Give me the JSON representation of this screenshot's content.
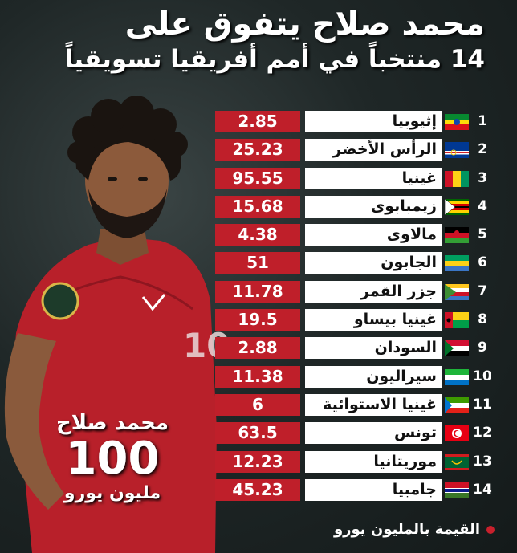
{
  "title": {
    "line1": "محمد صلاح يتفوق على",
    "line2": "14 منتخباً في أمم أفريقيا تسويقياً"
  },
  "salah": {
    "name": "محمد صلاح",
    "value": "100",
    "unit": "مليون يورو",
    "shirt_number": "10"
  },
  "rows": [
    {
      "rank": "1",
      "country": "إثيوبيا",
      "value": "2.85",
      "flag": "ethiopia-flag"
    },
    {
      "rank": "2",
      "country": "الرأس الأخضر",
      "value": "25.23",
      "flag": "cape-verde-flag"
    },
    {
      "rank": "3",
      "country": "غينيا",
      "value": "95.55",
      "flag": "guinea-flag"
    },
    {
      "rank": "4",
      "country": "زيمبابوى",
      "value": "15.68",
      "flag": "zimbabwe-flag"
    },
    {
      "rank": "5",
      "country": "مالاوى",
      "value": "4.38",
      "flag": "malawi-flag"
    },
    {
      "rank": "6",
      "country": "الجابون",
      "value": "51",
      "flag": "gabon-flag"
    },
    {
      "rank": "7",
      "country": "جزر القمر",
      "value": "11.78",
      "flag": "comoros-flag"
    },
    {
      "rank": "8",
      "country": "غينيا بيساو",
      "value": "19.5",
      "flag": "guinea-bissau-flag"
    },
    {
      "rank": "9",
      "country": "السودان",
      "value": "2.88",
      "flag": "sudan-flag"
    },
    {
      "rank": "10",
      "country": "سيراليون",
      "value": "11.38",
      "flag": "sierra-leone-flag"
    },
    {
      "rank": "11",
      "country": "غينيا الاستوائية",
      "value": "6",
      "flag": "equatorial-guinea-flag"
    },
    {
      "rank": "12",
      "country": "تونس",
      "value": "63.5",
      "flag": "tunisia-flag"
    },
    {
      "rank": "13",
      "country": "موريتانيا",
      "value": "12.23",
      "flag": "mauritania-flag"
    },
    {
      "rank": "14",
      "country": "جامبيا",
      "value": "45.23",
      "flag": "gambia-flag"
    }
  ],
  "footer": {
    "note": "القيمة بالمليون يورو"
  },
  "colors": {
    "value_bg": "#bf1f2a",
    "name_bg": "#ffffff",
    "background": "#1f2727"
  }
}
